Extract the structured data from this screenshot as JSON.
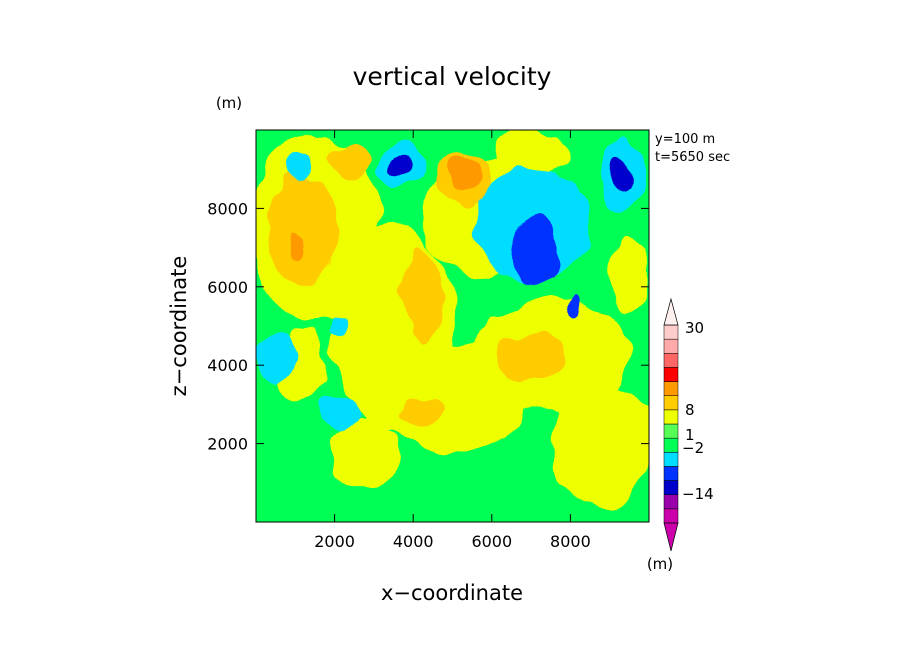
{
  "chart_data": {
    "type": "heatmap",
    "title": "vertical velocity",
    "xlabel": "x−coordinate",
    "ylabel": "z−coordinate",
    "x_unit": "(m)",
    "y_unit": "(m)",
    "colorbar_unit": "(m)",
    "info_lines": [
      "y=100 m",
      "t=5650 sec"
    ],
    "xlim": [
      0,
      10000
    ],
    "ylim": [
      0,
      10000
    ],
    "x_ticks": [
      2000,
      4000,
      6000,
      8000
    ],
    "y_ticks": [
      2000,
      4000,
      6000,
      8000
    ],
    "x_tick_labels": [
      "2000",
      "4000",
      "6000",
      "8000"
    ],
    "y_tick_labels": [
      "2000",
      "4000",
      "6000",
      "8000"
    ],
    "colorbar_labels": [
      "30",
      "8",
      "1",
      "−2",
      "−14"
    ],
    "colorbar_levels": [
      {
        "color": "#cc00aa"
      },
      {
        "color": "#9900aa"
      },
      {
        "color": "#0000cc"
      },
      {
        "color": "#0033ff"
      },
      {
        "color": "#00ddff"
      },
      {
        "color": "#00ff55"
      },
      {
        "color": "#55ff55"
      },
      {
        "color": "#eeff00"
      },
      {
        "color": "#ffcc00"
      },
      {
        "color": "#ff9900"
      },
      {
        "color": "#ff0000"
      },
      {
        "color": "#ff6666"
      },
      {
        "color": "#ffaaaa"
      },
      {
        "color": "#ffcccc"
      }
    ],
    "field_colors": {
      "green": "#00ff55",
      "yellow": "#eeff00",
      "lightorange": "#ffcc00",
      "orange": "#ff9900",
      "cyan": "#00ddff",
      "blue": "#0033ff",
      "darkblue": "#0000cc"
    },
    "regions": [
      {
        "level": "yellow",
        "cx": 1500,
        "cy": 7500,
        "rx": 1700,
        "ry": 2400
      },
      {
        "level": "yellow",
        "cx": 3500,
        "cy": 5000,
        "rx": 1600,
        "ry": 2600
      },
      {
        "level": "yellow",
        "cx": 5000,
        "cy": 3200,
        "rx": 1800,
        "ry": 1400
      },
      {
        "level": "yellow",
        "cx": 7500,
        "cy": 4300,
        "rx": 2000,
        "ry": 1400
      },
      {
        "level": "yellow",
        "cx": 8800,
        "cy": 2000,
        "rx": 1300,
        "ry": 1600
      },
      {
        "level": "yellow",
        "cx": 2800,
        "cy": 1800,
        "rx": 900,
        "ry": 900
      },
      {
        "level": "yellow",
        "cx": 5800,
        "cy": 7800,
        "rx": 1500,
        "ry": 1500
      },
      {
        "level": "yellow",
        "cx": 7000,
        "cy": 9400,
        "rx": 1000,
        "ry": 600
      },
      {
        "level": "yellow",
        "cx": 1200,
        "cy": 4000,
        "rx": 600,
        "ry": 900
      },
      {
        "level": "yellow",
        "cx": 9500,
        "cy": 6200,
        "rx": 500,
        "ry": 1000
      },
      {
        "level": "lightorange",
        "cx": 1200,
        "cy": 7400,
        "rx": 900,
        "ry": 1500
      },
      {
        "level": "lightorange",
        "cx": 5300,
        "cy": 8800,
        "rx": 700,
        "ry": 700
      },
      {
        "level": "lightorange",
        "cx": 2400,
        "cy": 9200,
        "rx": 500,
        "ry": 400
      },
      {
        "level": "lightorange",
        "cx": 4200,
        "cy": 5800,
        "rx": 500,
        "ry": 1300
      },
      {
        "level": "lightorange",
        "cx": 4300,
        "cy": 2800,
        "rx": 600,
        "ry": 350
      },
      {
        "level": "lightorange",
        "cx": 7000,
        "cy": 4200,
        "rx": 900,
        "ry": 600
      },
      {
        "level": "orange",
        "cx": 1000,
        "cy": 7000,
        "rx": 200,
        "ry": 300
      },
      {
        "level": "orange",
        "cx": 5300,
        "cy": 8900,
        "rx": 400,
        "ry": 500
      },
      {
        "level": "cyan",
        "cx": 3700,
        "cy": 9100,
        "rx": 600,
        "ry": 600
      },
      {
        "level": "cyan",
        "cx": 7000,
        "cy": 7600,
        "rx": 1500,
        "ry": 1400
      },
      {
        "level": "cyan",
        "cx": 9300,
        "cy": 8800,
        "rx": 500,
        "ry": 900
      },
      {
        "level": "cyan",
        "cx": 500,
        "cy": 4200,
        "rx": 500,
        "ry": 600
      },
      {
        "level": "cyan",
        "cx": 2100,
        "cy": 2800,
        "rx": 500,
        "ry": 400
      },
      {
        "level": "cyan",
        "cx": 1100,
        "cy": 9100,
        "rx": 350,
        "ry": 350
      },
      {
        "level": "cyan",
        "cx": 2100,
        "cy": 5000,
        "rx": 300,
        "ry": 250
      },
      {
        "level": "blue",
        "cx": 7100,
        "cy": 6900,
        "rx": 600,
        "ry": 800
      },
      {
        "level": "blue",
        "cx": 8100,
        "cy": 5500,
        "rx": 150,
        "ry": 250
      },
      {
        "level": "darkblue",
        "cx": 3700,
        "cy": 9100,
        "rx": 300,
        "ry": 300
      },
      {
        "level": "darkblue",
        "cx": 9300,
        "cy": 8800,
        "rx": 200,
        "ry": 400
      }
    ]
  }
}
